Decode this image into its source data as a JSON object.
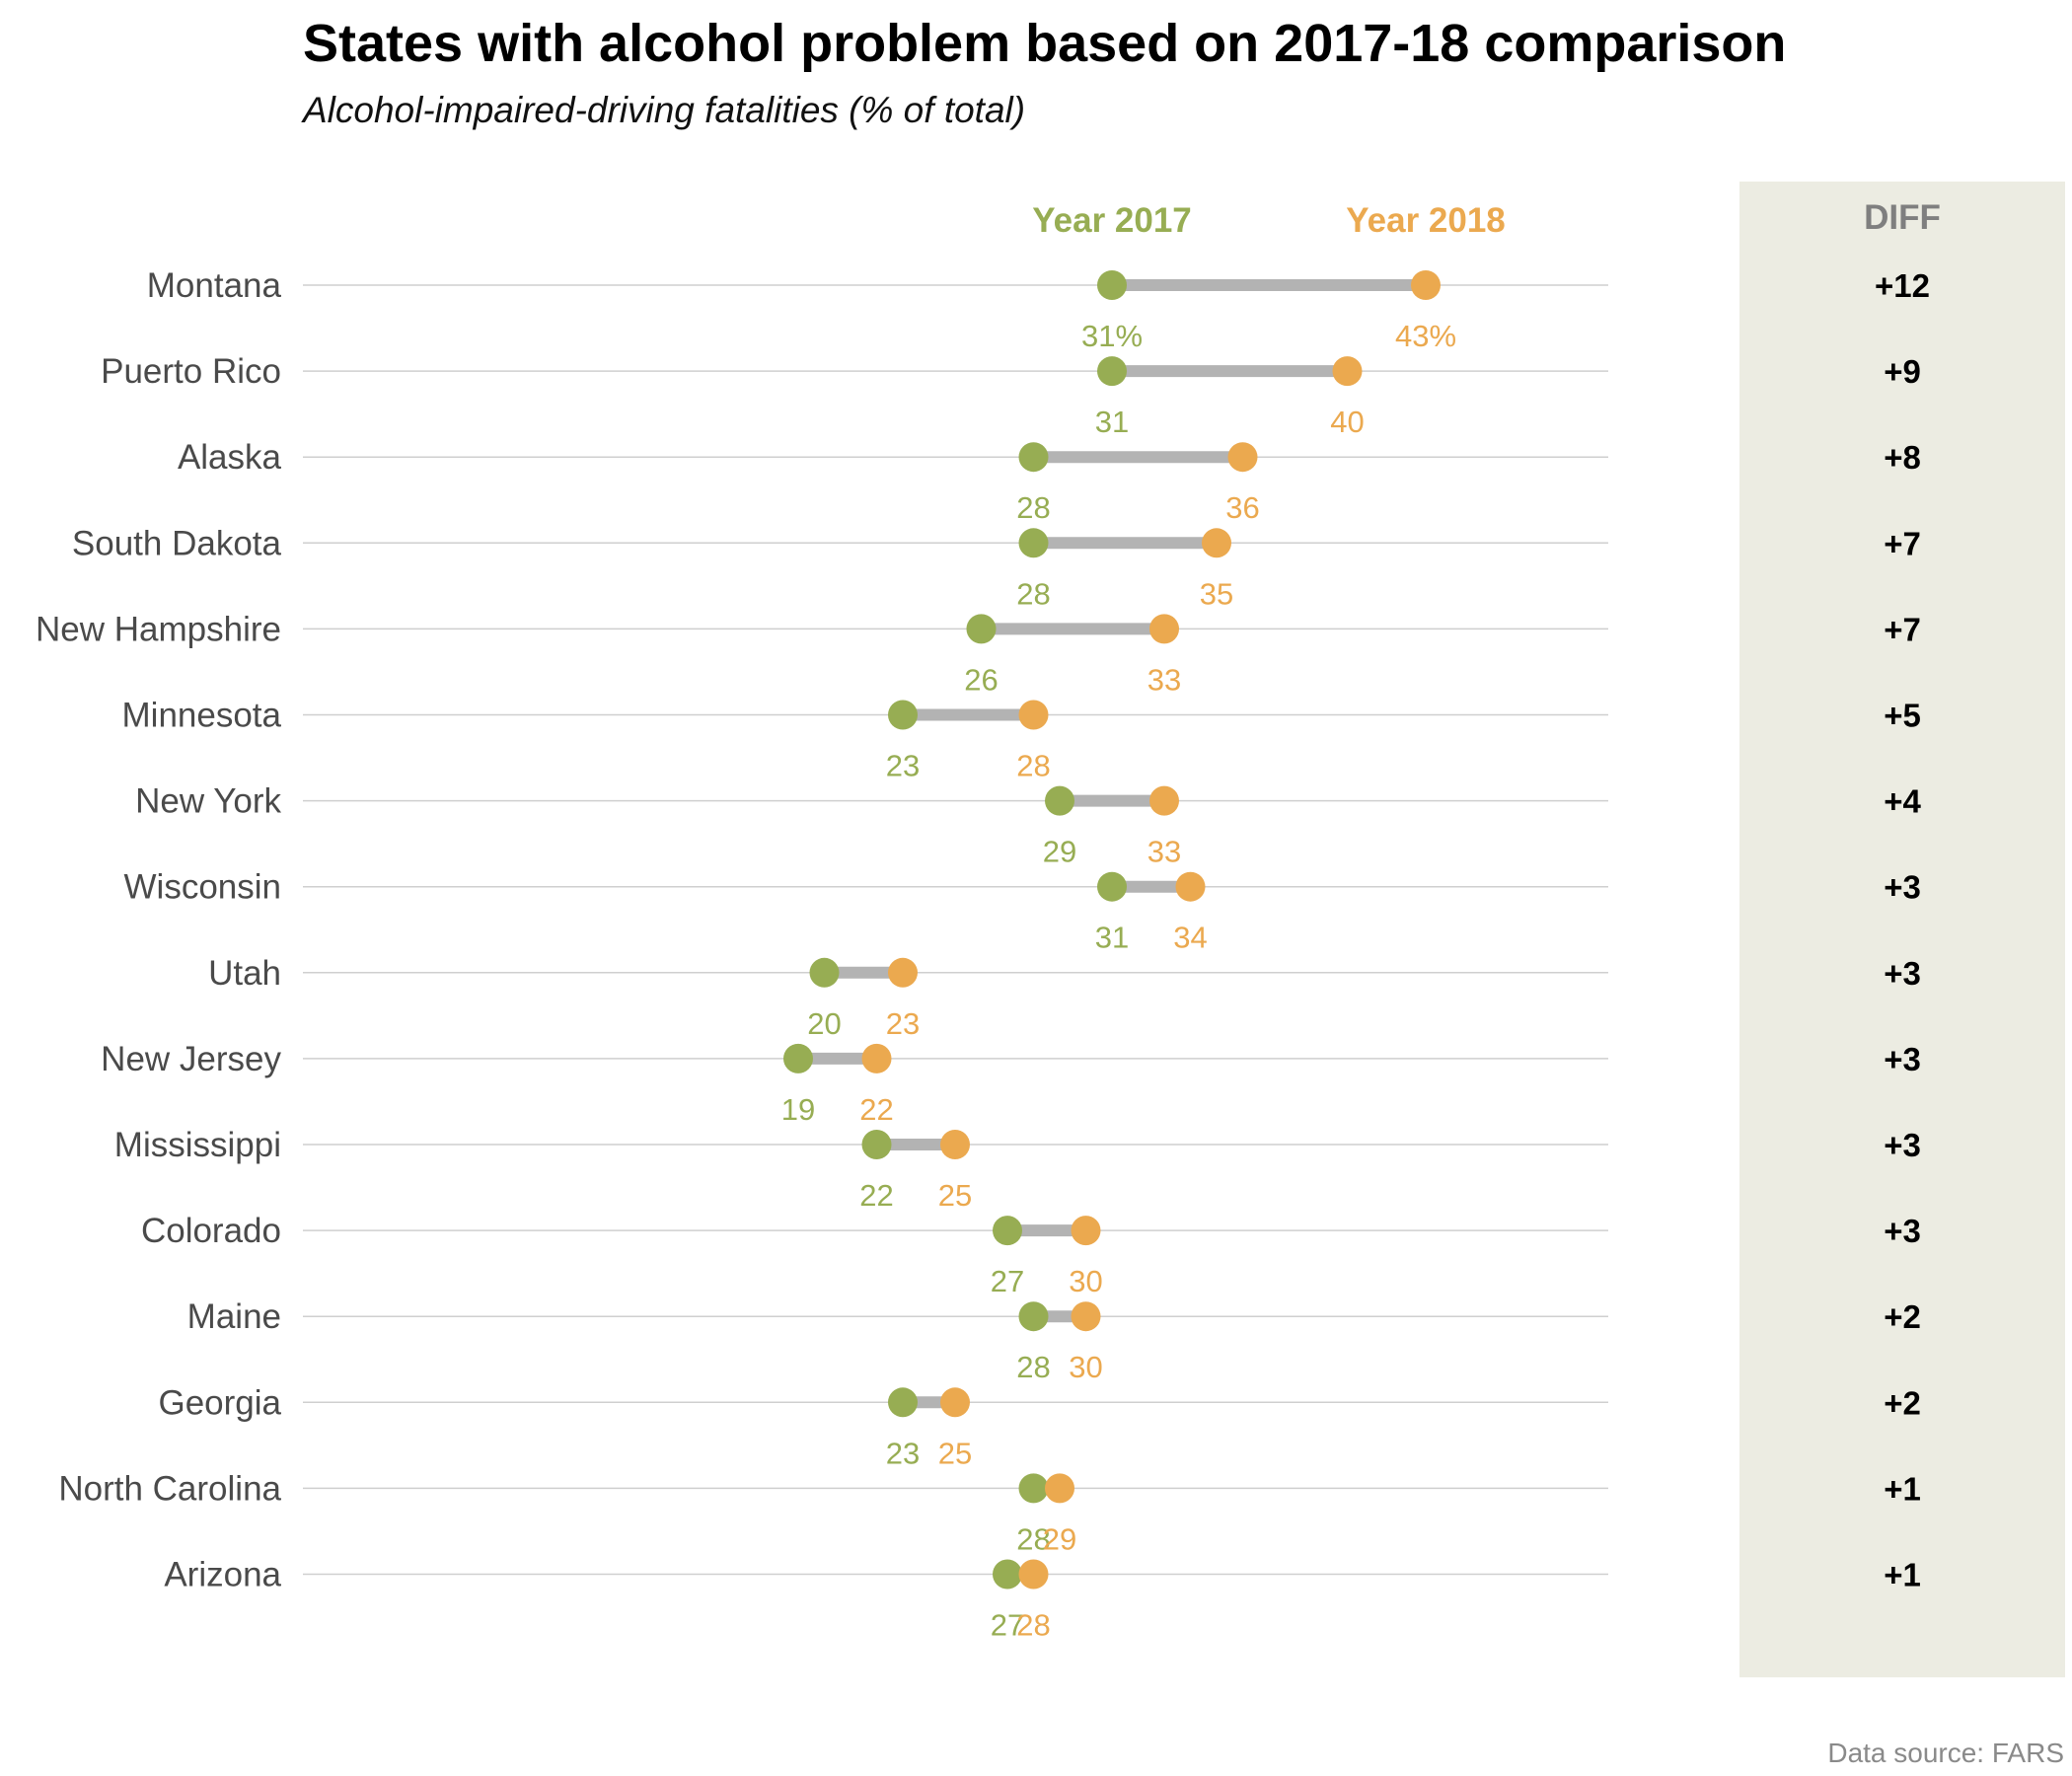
{
  "chart_data": {
    "type": "dumbbell",
    "title": "States with alcohol problem based on 2017-18 comparison",
    "subtitle": "Alcohol-impaired-driving fatalities (% of total)",
    "series": [
      {
        "name": "Year 2017",
        "color": "#97AD53"
      },
      {
        "name": "Year 2018",
        "color": "#EBA94F"
      }
    ],
    "diff_header": "DIFF",
    "source": "Data source: FARS",
    "xlim": [
      10,
      45
    ],
    "value_suffix_first_row": "%",
    "rows": [
      {
        "state": "Montana",
        "y2017": 31,
        "y2018": 43,
        "diff": "+12"
      },
      {
        "state": "Puerto Rico",
        "y2017": 31,
        "y2018": 40,
        "diff": "+9"
      },
      {
        "state": "Alaska",
        "y2017": 28,
        "y2018": 36,
        "diff": "+8"
      },
      {
        "state": "South Dakota",
        "y2017": 28,
        "y2018": 35,
        "diff": "+7"
      },
      {
        "state": "New Hampshire",
        "y2017": 26,
        "y2018": 33,
        "diff": "+7"
      },
      {
        "state": "Minnesota",
        "y2017": 23,
        "y2018": 28,
        "diff": "+5"
      },
      {
        "state": "New York",
        "y2017": 29,
        "y2018": 33,
        "diff": "+4"
      },
      {
        "state": "Wisconsin",
        "y2017": 31,
        "y2018": 34,
        "diff": "+3"
      },
      {
        "state": "Utah",
        "y2017": 20,
        "y2018": 23,
        "diff": "+3"
      },
      {
        "state": "New Jersey",
        "y2017": 19,
        "y2018": 22,
        "diff": "+3"
      },
      {
        "state": "Mississippi",
        "y2017": 22,
        "y2018": 25,
        "diff": "+3"
      },
      {
        "state": "Colorado",
        "y2017": 27,
        "y2018": 30,
        "diff": "+3"
      },
      {
        "state": "Maine",
        "y2017": 28,
        "y2018": 30,
        "diff": "+2"
      },
      {
        "state": "Georgia",
        "y2017": 23,
        "y2018": 25,
        "diff": "+2"
      },
      {
        "state": "North Carolina",
        "y2017": 28,
        "y2018": 29,
        "diff": "+1"
      },
      {
        "state": "Arizona",
        "y2017": 27,
        "y2018": 28,
        "diff": "+1"
      }
    ]
  }
}
